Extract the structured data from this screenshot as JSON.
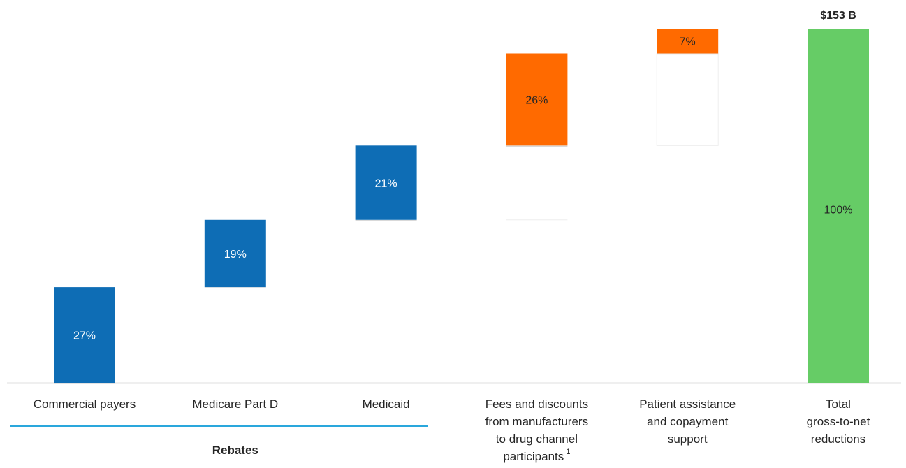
{
  "chart_data": {
    "type": "bar",
    "subtype": "waterfall",
    "categories": [
      "Commercial payers",
      "Medicare Part D",
      "Medicaid",
      "Fees and discounts from manufacturers to drug channel participants",
      "Patient assistance and copayment support",
      "Total gross-to-net reductions"
    ],
    "category_lines": [
      [
        "Commercial payers"
      ],
      [
        "Medicare Part D"
      ],
      [
        "Medicaid"
      ],
      [
        "Fees and discounts",
        "from manufacturers",
        "to drug channel",
        "participants"
      ],
      [
        "Patient assistance",
        "and copayment",
        "support"
      ],
      [
        "Total",
        "gross-to-net",
        "reductions"
      ]
    ],
    "footnote_marker": "1",
    "values": [
      27,
      19,
      21,
      26,
      7,
      100
    ],
    "value_labels": [
      "27%",
      "19%",
      "21%",
      "26%",
      "7%",
      "100%"
    ],
    "bar_kind": [
      "rebate",
      "rebate",
      "rebate",
      "fee",
      "fee",
      "total"
    ],
    "total_label": "$153 B",
    "group_label": "Rebates",
    "group_span": [
      0,
      2
    ],
    "ylim": [
      0,
      100
    ],
    "grid": false,
    "colors": {
      "rebate": "#0e6db5",
      "fee": "#ff6a00",
      "total": "#66cc66",
      "group_line": "#2aa7dc",
      "axis": "#bfbfbf",
      "ghost": "#eeeeee"
    }
  }
}
